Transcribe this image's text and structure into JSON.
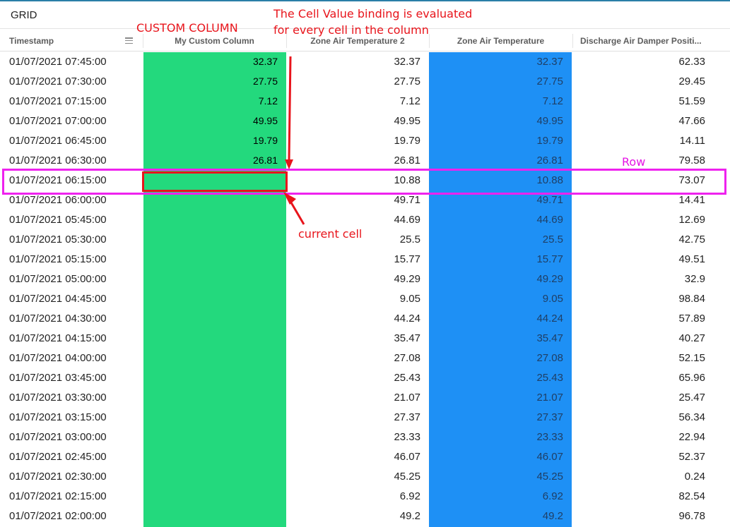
{
  "title": "GRID",
  "columns": {
    "timestamp": "Timestamp",
    "custom": "My Custom Column",
    "zat2": "Zone Air Temperature 2",
    "zat": "Zone Air Temperature",
    "damper": "Discharge Air Damper Positi..."
  },
  "annotations": {
    "custom_column": "CUSTOM COLUMN",
    "binding_line1": "The Cell Value binding is evaluated",
    "binding_line2": "for every cell in the column",
    "current_cell": "current cell",
    "row": "Row"
  },
  "colors": {
    "custom_column": "#23d97d",
    "zone_air_temp": "#1e90f5",
    "annotation_red": "#e8141b",
    "row_highlight": "#ee22ee"
  },
  "rows": [
    {
      "timestamp": "01/07/2021 07:45:00",
      "custom": "32.37",
      "zat2": "32.37",
      "zat": "32.37",
      "damper": "62.33"
    },
    {
      "timestamp": "01/07/2021 07:30:00",
      "custom": "27.75",
      "zat2": "27.75",
      "zat": "27.75",
      "damper": "29.45"
    },
    {
      "timestamp": "01/07/2021 07:15:00",
      "custom": "7.12",
      "zat2": "7.12",
      "zat": "7.12",
      "damper": "51.59"
    },
    {
      "timestamp": "01/07/2021 07:00:00",
      "custom": "49.95",
      "zat2": "49.95",
      "zat": "49.95",
      "damper": "47.66"
    },
    {
      "timestamp": "01/07/2021 06:45:00",
      "custom": "19.79",
      "zat2": "19.79",
      "zat": "19.79",
      "damper": "14.11"
    },
    {
      "timestamp": "01/07/2021 06:30:00",
      "custom": "26.81",
      "zat2": "26.81",
      "zat": "26.81",
      "damper": "79.58"
    },
    {
      "timestamp": "01/07/2021 06:15:00",
      "custom": "",
      "zat2": "10.88",
      "zat": "10.88",
      "damper": "73.07"
    },
    {
      "timestamp": "01/07/2021 06:00:00",
      "custom": "",
      "zat2": "49.71",
      "zat": "49.71",
      "damper": "14.41"
    },
    {
      "timestamp": "01/07/2021 05:45:00",
      "custom": "",
      "zat2": "44.69",
      "zat": "44.69",
      "damper": "12.69"
    },
    {
      "timestamp": "01/07/2021 05:30:00",
      "custom": "",
      "zat2": "25.5",
      "zat": "25.5",
      "damper": "42.75"
    },
    {
      "timestamp": "01/07/2021 05:15:00",
      "custom": "",
      "zat2": "15.77",
      "zat": "15.77",
      "damper": "49.51"
    },
    {
      "timestamp": "01/07/2021 05:00:00",
      "custom": "",
      "zat2": "49.29",
      "zat": "49.29",
      "damper": "32.9"
    },
    {
      "timestamp": "01/07/2021 04:45:00",
      "custom": "",
      "zat2": "9.05",
      "zat": "9.05",
      "damper": "98.84"
    },
    {
      "timestamp": "01/07/2021 04:30:00",
      "custom": "",
      "zat2": "44.24",
      "zat": "44.24",
      "damper": "57.89"
    },
    {
      "timestamp": "01/07/2021 04:15:00",
      "custom": "",
      "zat2": "35.47",
      "zat": "35.47",
      "damper": "40.27"
    },
    {
      "timestamp": "01/07/2021 04:00:00",
      "custom": "",
      "zat2": "27.08",
      "zat": "27.08",
      "damper": "52.15"
    },
    {
      "timestamp": "01/07/2021 03:45:00",
      "custom": "",
      "zat2": "25.43",
      "zat": "25.43",
      "damper": "65.96"
    },
    {
      "timestamp": "01/07/2021 03:30:00",
      "custom": "",
      "zat2": "21.07",
      "zat": "21.07",
      "damper": "25.47"
    },
    {
      "timestamp": "01/07/2021 03:15:00",
      "custom": "",
      "zat2": "27.37",
      "zat": "27.37",
      "damper": "56.34"
    },
    {
      "timestamp": "01/07/2021 03:00:00",
      "custom": "",
      "zat2": "23.33",
      "zat": "23.33",
      "damper": "22.94"
    },
    {
      "timestamp": "01/07/2021 02:45:00",
      "custom": "",
      "zat2": "46.07",
      "zat": "46.07",
      "damper": "52.37"
    },
    {
      "timestamp": "01/07/2021 02:30:00",
      "custom": "",
      "zat2": "45.25",
      "zat": "45.25",
      "damper": "0.24"
    },
    {
      "timestamp": "01/07/2021 02:15:00",
      "custom": "",
      "zat2": "6.92",
      "zat": "6.92",
      "damper": "82.54"
    },
    {
      "timestamp": "01/07/2021 02:00:00",
      "custom": "",
      "zat2": "49.2",
      "zat": "49.2",
      "damper": "96.78"
    }
  ]
}
